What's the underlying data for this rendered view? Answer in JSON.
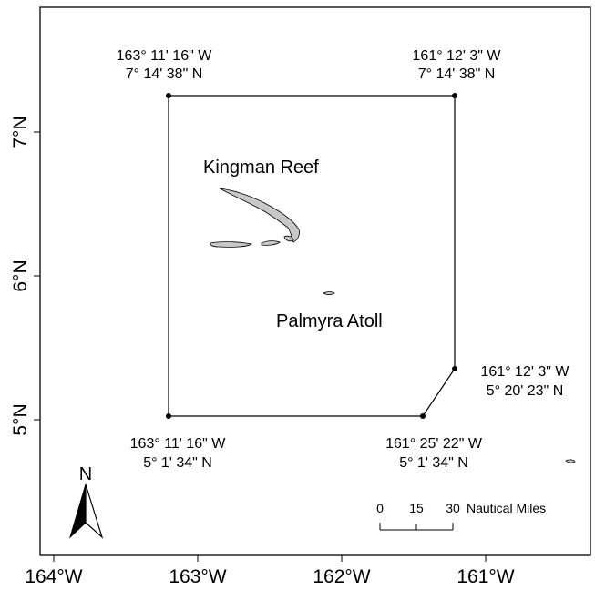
{
  "map": {
    "x_ticks": [
      "164°W",
      "163°W",
      "162°W",
      "161°W"
    ],
    "y_ticks": [
      "7°N",
      "6°N",
      "5°N"
    ],
    "corners": [
      {
        "id": "nw",
        "lon": "163° 11' 16\" W",
        "lat": "7° 14' 38\" N"
      },
      {
        "id": "ne",
        "lon": "161° 12' 3\" W",
        "lat": "7° 14' 38\" N"
      },
      {
        "id": "se",
        "lon": "161° 12' 3\" W",
        "lat": "5° 20' 23\" N"
      },
      {
        "id": "s",
        "lon": "161° 25' 22\" W",
        "lat": "5° 1' 34\" N"
      },
      {
        "id": "sw",
        "lon": "163° 11' 16\" W",
        "lat": "5° 1' 34\" N"
      }
    ],
    "places": {
      "kingman": "Kingman Reef",
      "palmyra": "Palmyra Atoll"
    },
    "scale_bar": {
      "ticks": [
        "0",
        "15",
        "30"
      ],
      "unit": "Nautical Miles"
    },
    "north_arrow": {
      "label": "N"
    },
    "colors": {
      "land": "#c8c8c8",
      "outline": "#000000"
    }
  }
}
